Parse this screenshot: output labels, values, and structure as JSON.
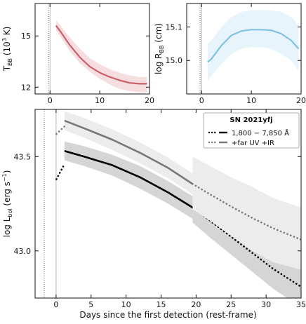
{
  "chart_data": [
    {
      "id": "temperature",
      "type": "line",
      "xlabel": "",
      "ylabel": "T_BB (10^3 K)",
      "ylabel_parts": {
        "main": "T",
        "sub": "BB",
        "rest": " (10",
        "sup": "3",
        "end": " K)"
      },
      "xlim": [
        -3,
        20
      ],
      "ylim": [
        11.6,
        16.9
      ],
      "xticks": [
        0,
        10,
        20
      ],
      "yticks": [
        12,
        15
      ],
      "ytick_labels": [
        "12",
        "15"
      ],
      "vlines": [
        {
          "x": 0,
          "style": "solid"
        },
        {
          "x": -0.3,
          "style": "dotted"
        }
      ],
      "series": [
        {
          "color": "#c9606c",
          "band_color": "#f6dee0",
          "x": [
            1.2,
            2,
            4,
            6,
            8,
            10,
            12,
            14,
            16,
            18,
            19.5
          ],
          "y": [
            15.6,
            15.3,
            14.45,
            13.75,
            13.2,
            12.85,
            12.6,
            12.4,
            12.25,
            12.2,
            12.2
          ],
          "lower": [
            15.3,
            15.0,
            14.1,
            13.4,
            12.9,
            12.5,
            12.15,
            11.9,
            11.75,
            11.7,
            11.7
          ],
          "upper": [
            15.9,
            15.65,
            14.9,
            14.25,
            13.7,
            13.35,
            13.05,
            12.85,
            12.7,
            12.6,
            12.6
          ]
        }
      ]
    },
    {
      "id": "radius",
      "type": "line",
      "xlabel": "",
      "ylabel": "log R_BB (cm)",
      "ylabel_parts": {
        "main": "log R",
        "sub": "BB",
        "rest": " (cm)"
      },
      "xlim": [
        -3,
        20
      ],
      "ylim": [
        14.9,
        15.17
      ],
      "xticks": [
        0,
        10,
        20
      ],
      "yticks": [
        15.0,
        15.1
      ],
      "ytick_labels": [
        "15.0",
        "15.1"
      ],
      "vlines": [
        {
          "x": 0,
          "style": "solid"
        },
        {
          "x": -0.3,
          "style": "dotted"
        }
      ],
      "series": [
        {
          "color": "#7ec3e6",
          "band_color": "#e8f4fb",
          "x": [
            1.2,
            2,
            4,
            6,
            8,
            10,
            12,
            14,
            16,
            18,
            19.5
          ],
          "y": [
            14.995,
            15.005,
            15.045,
            15.075,
            15.088,
            15.092,
            15.092,
            15.09,
            15.08,
            15.06,
            15.035
          ],
          "lower": [
            14.94,
            14.955,
            14.99,
            15.02,
            15.035,
            15.04,
            15.04,
            15.035,
            15.02,
            15.0,
            14.97
          ],
          "upper": [
            15.05,
            15.06,
            15.1,
            15.13,
            15.145,
            15.15,
            15.15,
            15.15,
            15.145,
            15.13,
            15.105
          ]
        }
      ]
    },
    {
      "id": "luminosity",
      "type": "line",
      "xlabel": "Days since the first detection (rest-frame)",
      "ylabel": "log L_bol (erg s^-1)",
      "ylabel_parts": {
        "main": "log L",
        "sub": "bol",
        "rest": " (erg s",
        "sup": "−1",
        "end": ")"
      },
      "xlim": [
        -3,
        35
      ],
      "ylim": [
        42.75,
        43.75
      ],
      "xticks": [
        0,
        5,
        10,
        15,
        20,
        25,
        30,
        35
      ],
      "yticks": [
        43.0,
        43.5
      ],
      "ytick_labels": [
        "43.0",
        "43.5"
      ],
      "vlines": [
        {
          "x": 0,
          "style": "solid"
        },
        {
          "x": -1.7,
          "style": "dotted"
        }
      ],
      "legend": {
        "title": "SN 2021yfj",
        "placement": "top-right",
        "entries": [
          "1,800 − 7,850 Å",
          "+far UV +IR"
        ]
      },
      "series": [
        {
          "name": "1,800 − 7,850 Å",
          "color": "#000000",
          "band_color": "#d5d5d5",
          "solid": {
            "x": [
              1.2,
              4,
              8,
              12,
              16,
              19.5
            ],
            "y": [
              43.53,
              43.5,
              43.455,
              43.39,
              43.31,
              43.23
            ],
            "lower": [
              43.48,
              43.45,
              43.4,
              43.33,
              43.25,
              43.17
            ],
            "upper": [
              43.58,
              43.555,
              43.51,
              43.45,
              43.37,
              43.29
            ]
          },
          "dotted": {
            "x": [
              19.5,
              22,
              25,
              28,
              31,
              35
            ],
            "y": [
              43.23,
              43.16,
              43.075,
              42.99,
              42.905,
              42.81
            ],
            "lower": [
              43.15,
              43.07,
              42.98,
              42.89,
              42.8,
              42.7
            ],
            "upper": [
              43.31,
              43.25,
              43.17,
              43.09,
              43.01,
              42.92
            ]
          },
          "early": {
            "x": [
              0.05,
              1.2
            ],
            "y": [
              43.38,
              43.46
            ]
          }
        },
        {
          "name": "+far UV +IR",
          "color": "#777777",
          "band_color": "#ececec",
          "solid": {
            "x": [
              1.2,
              4,
              8,
              12,
              16,
              19.5
            ],
            "y": [
              43.69,
              43.65,
              43.59,
              43.52,
              43.44,
              43.355
            ],
            "lower": [
              43.64,
              43.6,
              43.535,
              43.465,
              43.385,
              43.3
            ],
            "upper": [
              43.74,
              43.705,
              43.645,
              43.575,
              43.495,
              43.41
            ]
          },
          "dotted": {
            "x": [
              19.5,
              22,
              25,
              28,
              31,
              35
            ],
            "y": [
              43.355,
              43.3,
              43.235,
              43.175,
              43.12,
              43.06
            ],
            "lower": [
              43.22,
              43.16,
              43.08,
              43.0,
              42.94,
              42.9
            ],
            "upper": [
              43.5,
              43.45,
              43.39,
              43.34,
              43.28,
              43.23
            ]
          },
          "early": {
            "x": [
              0.05,
              1.2
            ],
            "y": [
              43.62,
              43.66
            ]
          }
        }
      ]
    }
  ]
}
